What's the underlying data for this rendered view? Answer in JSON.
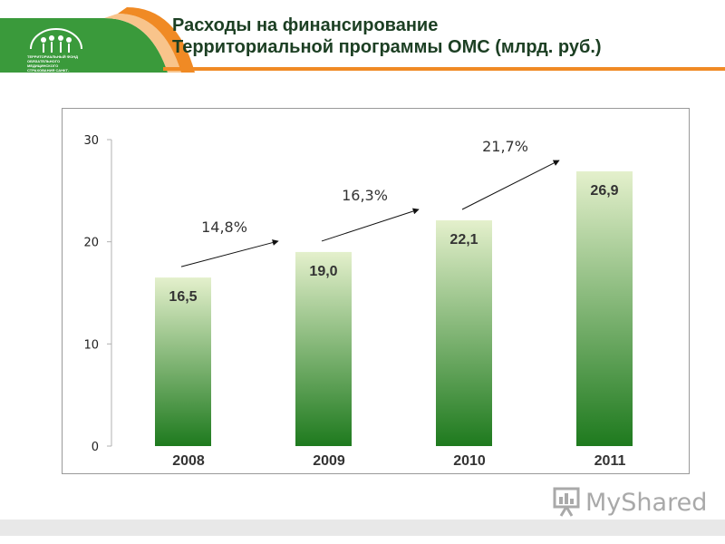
{
  "header": {
    "logo_text": "ТЕРРИТОРИАЛЬНЫЙ ФОНД\nОБЯЗАТЕЛЬНОГО МЕДИЦИНСКОГО\nСТРАХОВАНИЯ САНКТ-ПЕТЕРБУРГА",
    "colors": {
      "green": "#3a9a3b",
      "orange": "#f08a24",
      "orange_light": "#f8c48b"
    }
  },
  "watermark": {
    "text": "MyShared",
    "icon": "presentation-board-icon"
  },
  "chart_data": {
    "type": "bar",
    "title_lines": [
      "Расходы на финансирование",
      "Территориальной программы ОМС (млрд. руб.)"
    ],
    "categories": [
      "2008",
      "2009",
      "2010",
      "2011"
    ],
    "values": [
      16.5,
      19.0,
      22.1,
      26.9
    ],
    "value_labels": [
      "16,5",
      "19,0",
      "22,1",
      "26,9"
    ],
    "ylim": [
      0,
      30
    ],
    "yticks": [
      "0",
      "10",
      "20",
      "30"
    ],
    "yticks_values": [
      0,
      10,
      20,
      30
    ],
    "grid": false,
    "legend": "none",
    "growth_annotations": [
      {
        "label": "14,8%",
        "from": "2008",
        "to": "2009"
      },
      {
        "label": "16,3%",
        "from": "2009",
        "to": "2010"
      },
      {
        "label": "21,7%",
        "from": "2010",
        "to": "2011"
      }
    ],
    "colors": {
      "bar_top": "#e4f0cc",
      "bar_bottom": "#1e7a1e"
    }
  }
}
